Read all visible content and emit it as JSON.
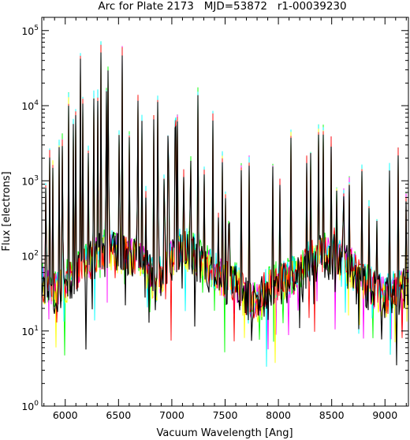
{
  "chart_data": {
    "type": "line",
    "title": "Arc for Plate 2173   MJD=53872   r1-00039230",
    "xlabel": "Vacuum Wavelength [Ang]",
    "ylabel": "Flux [electrons]",
    "xlim": [
      5780,
      9220
    ],
    "ylim": [
      1,
      150000
    ],
    "y_scale": "log",
    "grid": false,
    "legend": "none",
    "x_ticks": [
      6000,
      6500,
      7000,
      7500,
      8000,
      8500,
      9000
    ],
    "y_ticks": [
      {
        "value": 1,
        "base": "10",
        "exp": "0"
      },
      {
        "value": 10,
        "base": "10",
        "exp": "1"
      },
      {
        "value": 100,
        "base": "10",
        "exp": "2"
      },
      {
        "value": 1000,
        "base": "10",
        "exp": "3"
      },
      {
        "value": 10000,
        "base": "10",
        "exp": "4"
      },
      {
        "value": 100000,
        "base": "10",
        "exp": "5"
      }
    ],
    "continuum": [
      [
        5780,
        45
      ],
      [
        5900,
        35
      ],
      [
        6000,
        45
      ],
      [
        6100,
        60
      ],
      [
        6200,
        80
      ],
      [
        6300,
        110
      ],
      [
        6400,
        120
      ],
      [
        6500,
        115
      ],
      [
        6600,
        105
      ],
      [
        6700,
        100
      ],
      [
        6800,
        60
      ],
      [
        6850,
        40
      ],
      [
        6900,
        55
      ],
      [
        7000,
        100
      ],
      [
        7100,
        130
      ],
      [
        7200,
        110
      ],
      [
        7300,
        80
      ],
      [
        7400,
        60
      ],
      [
        7500,
        50
      ],
      [
        7600,
        45
      ],
      [
        7700,
        30
      ],
      [
        7800,
        25
      ],
      [
        7900,
        40
      ],
      [
        8000,
        45
      ],
      [
        8100,
        50
      ],
      [
        8200,
        60
      ],
      [
        8300,
        90
      ],
      [
        8400,
        110
      ],
      [
        8500,
        100
      ],
      [
        8600,
        90
      ],
      [
        8700,
        70
      ],
      [
        8800,
        45
      ],
      [
        8900,
        35
      ],
      [
        9000,
        30
      ],
      [
        9100,
        35
      ],
      [
        9220,
        40
      ]
    ],
    "emission_lines": [
      {
        "x": 5820,
        "y": 6000
      },
      {
        "x": 5852,
        "y": 5500
      },
      {
        "x": 5882,
        "y": 3000
      },
      {
        "x": 5945,
        "y": 8000
      },
      {
        "x": 5975,
        "y": 15000
      },
      {
        "x": 6030,
        "y": 20000
      },
      {
        "x": 6075,
        "y": 7000
      },
      {
        "x": 6096,
        "y": 20000
      },
      {
        "x": 6143,
        "y": 50000
      },
      {
        "x": 6165,
        "y": 12000
      },
      {
        "x": 6218,
        "y": 4000
      },
      {
        "x": 6266,
        "y": 40000
      },
      {
        "x": 6305,
        "y": 15000
      },
      {
        "x": 6334,
        "y": 70000
      },
      {
        "x": 6384,
        "y": 60000
      },
      {
        "x": 6404,
        "y": 110000
      },
      {
        "x": 6508,
        "y": 25000
      },
      {
        "x": 6534,
        "y": 60000
      },
      {
        "x": 6600,
        "y": 5000
      },
      {
        "x": 6680,
        "y": 45000
      },
      {
        "x": 6718,
        "y": 10000
      },
      {
        "x": 6754,
        "y": 2500
      },
      {
        "x": 6831,
        "y": 7000
      },
      {
        "x": 6870,
        "y": 40000
      },
      {
        "x": 6930,
        "y": 10000
      },
      {
        "x": 6967,
        "y": 40000
      },
      {
        "x": 7034,
        "y": 90000
      },
      {
        "x": 7052,
        "y": 7000
      },
      {
        "x": 7109,
        "y": 5000
      },
      {
        "x": 7175,
        "y": 15000
      },
      {
        "x": 7247,
        "y": 40000
      },
      {
        "x": 7306,
        "y": 3000
      },
      {
        "x": 7386,
        "y": 8000
      },
      {
        "x": 7440,
        "y": 1800
      },
      {
        "x": 7475,
        "y": 2500
      },
      {
        "x": 7506,
        "y": 2000
      },
      {
        "x": 7537,
        "y": 4000
      },
      {
        "x": 7650,
        "y": 2500
      },
      {
        "x": 7726,
        "y": 2000
      },
      {
        "x": 7949,
        "y": 2500
      },
      {
        "x": 8016,
        "y": 2000
      },
      {
        "x": 8117,
        "y": 5000
      },
      {
        "x": 8266,
        "y": 2000
      },
      {
        "x": 8301,
        "y": 4000
      },
      {
        "x": 8379,
        "y": 15000
      },
      {
        "x": 8420,
        "y": 6000
      },
      {
        "x": 8495,
        "y": 3500
      },
      {
        "x": 8521,
        "y": 3000
      },
      {
        "x": 8545,
        "y": 1500
      },
      {
        "x": 8610,
        "y": 7000
      },
      {
        "x": 8667,
        "y": 2000
      },
      {
        "x": 8783,
        "y": 1500
      },
      {
        "x": 8853,
        "y": 2500
      },
      {
        "x": 8921,
        "y": 2000
      },
      {
        "x": 9042,
        "y": 1500
      },
      {
        "x": 9123,
        "y": 3000
      },
      {
        "x": 9196,
        "y": 1200
      }
    ],
    "series_colors": [
      "#000000",
      "#ff0000",
      "#00ffff",
      "#ffff00",
      "#ff00ff",
      "#00ff00"
    ]
  }
}
